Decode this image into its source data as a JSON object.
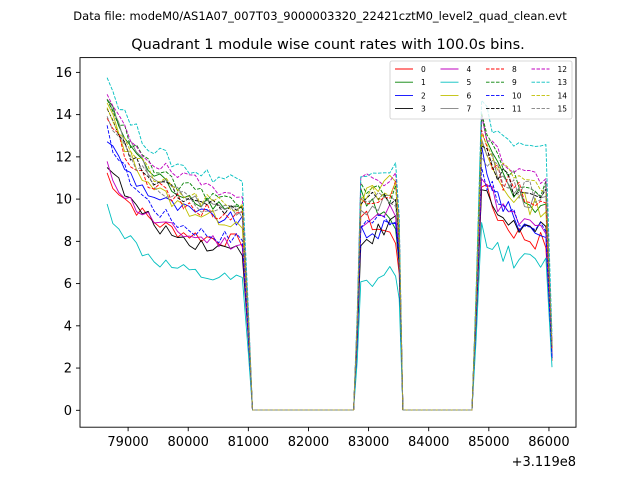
{
  "chart_data": {
    "type": "line",
    "suptitle": "Data file: modeM0/AS1A07_007T03_9000003320_22421cztM0_level2_quad_clean.evt",
    "title": "Quadrant 1 module wise count rates with 100.0s bins.",
    "xlabel": "",
    "ylabel": "",
    "x_offset_label": "+3.119e8",
    "xlim": [
      78200,
      86450
    ],
    "ylim": [
      -0.8,
      16.7
    ],
    "xticks": [
      79000,
      80000,
      81000,
      82000,
      83000,
      84000,
      85000,
      86000
    ],
    "xtick_labels": [
      "79000",
      "80000",
      "81000",
      "82000",
      "83000",
      "84000",
      "85000",
      "86000"
    ],
    "yticks": [
      0,
      2,
      4,
      6,
      8,
      10,
      12,
      14,
      16
    ],
    "ytick_labels": [
      "0",
      "2",
      "4",
      "6",
      "8",
      "10",
      "12",
      "14",
      "16"
    ],
    "legend_location": "upper right",
    "legend_columns": 4,
    "segments": [
      {
        "start": 78650,
        "end": 81000,
        "n": 24
      },
      {
        "start": 82750,
        "end": 83550,
        "n": 9
      },
      {
        "start": 84750,
        "end": 86050,
        "n": 14
      }
    ],
    "series": [
      {
        "name": "0",
        "color": "#ff0000",
        "dash": "solid",
        "levels": [
          11.2,
          8.0,
          9.2,
          8.1,
          10.9,
          7.8
        ]
      },
      {
        "name": "1",
        "color": "#008000",
        "dash": "solid",
        "levels": [
          14.8,
          9.6,
          10.3,
          8.6,
          13.6,
          9.3
        ]
      },
      {
        "name": "2",
        "color": "#0000ff",
        "dash": "solid",
        "levels": [
          12.9,
          9.0,
          8.3,
          8.7,
          12.4,
          8.2
        ]
      },
      {
        "name": "3",
        "color": "#000000",
        "dash": "solid",
        "levels": [
          11.8,
          7.6,
          8.0,
          8.9,
          10.6,
          8.3
        ]
      },
      {
        "name": "4",
        "color": "#bf00bf",
        "dash": "solid",
        "levels": [
          11.5,
          7.9,
          8.6,
          9.6,
          11.4,
          8.4
        ]
      },
      {
        "name": "5",
        "color": "#00bfbf",
        "dash": "solid",
        "levels": [
          9.6,
          6.1,
          5.8,
          6.6,
          8.6,
          6.8
        ]
      },
      {
        "name": "6",
        "color": "#bfbf00",
        "dash": "solid",
        "levels": [
          14.5,
          8.9,
          10.0,
          10.9,
          12.7,
          9.4
        ]
      },
      {
        "name": "7",
        "color": "#7f7f7f",
        "dash": "solid",
        "levels": [
          14.8,
          9.5,
          9.6,
          9.8,
          13.1,
          9.6
        ]
      },
      {
        "name": "8",
        "color": "#ff0000",
        "dash": "dashed",
        "levels": [
          14.0,
          9.2,
          9.9,
          10.6,
          12.8,
          9.8
        ]
      },
      {
        "name": "9",
        "color": "#008000",
        "dash": "dashed",
        "levels": [
          15.0,
          9.9,
          10.4,
          10.2,
          13.9,
          10.3
        ]
      },
      {
        "name": "10",
        "color": "#0000ff",
        "dash": "dashed",
        "levels": [
          13.2,
          8.1,
          8.9,
          9.2,
          11.6,
          8.4
        ]
      },
      {
        "name": "11",
        "color": "#000000",
        "dash": "dashed",
        "levels": [
          14.1,
          9.5,
          9.8,
          10.1,
          12.9,
          9.9
        ]
      },
      {
        "name": "12",
        "color": "#bf00bf",
        "dash": "dashed",
        "levels": [
          14.9,
          10.4,
          10.8,
          11.2,
          13.6,
          10.9
        ]
      },
      {
        "name": "13",
        "color": "#00bfbf",
        "dash": "dashed",
        "levels": [
          15.8,
          10.9,
          11.5,
          11.5,
          14.6,
          12.0
        ]
      },
      {
        "name": "14",
        "color": "#bfbf00",
        "dash": "dashed",
        "levels": [
          14.5,
          9.6,
          10.3,
          10.4,
          13.3,
          10.2
        ]
      },
      {
        "name": "15",
        "color": "#7f7f7f",
        "dash": "dashed",
        "levels": [
          14.2,
          9.4,
          10.0,
          10.0,
          12.5,
          10.1
        ]
      }
    ]
  }
}
